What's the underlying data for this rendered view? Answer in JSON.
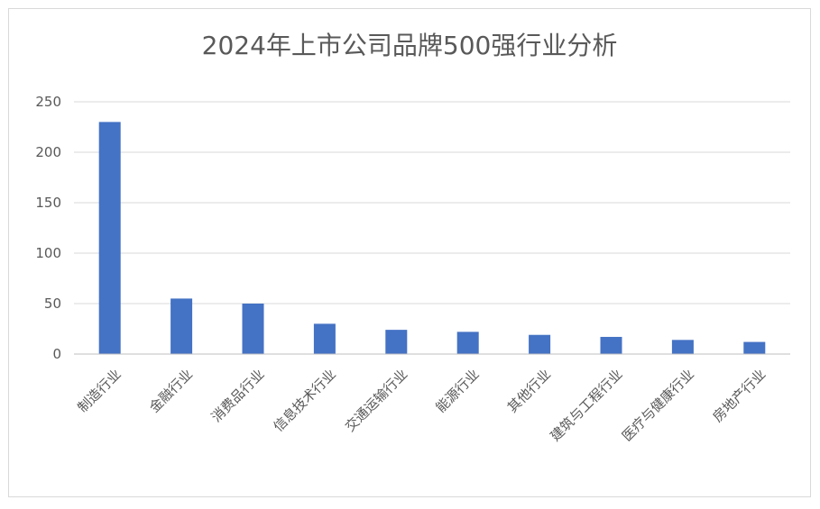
{
  "chart_data": {
    "type": "bar",
    "title": "2024年上市公司品牌500强行业分析",
    "xlabel": "",
    "ylabel": "",
    "categories": [
      "制造行业",
      "金融行业",
      "消费品行业",
      "信息技术行业",
      "交通运输行业",
      "能源行业",
      "其他行业",
      "建筑与工程行业",
      "医疗与健康行业",
      "房地产行业"
    ],
    "values": [
      230,
      55,
      50,
      30,
      24,
      22,
      19,
      17,
      14,
      12
    ],
    "ylim": [
      0,
      250
    ],
    "yticks": [
      "0",
      "50",
      "100",
      "150",
      "200",
      "250"
    ],
    "grid": true,
    "legend": "none",
    "bar_color": "#4472c4"
  }
}
